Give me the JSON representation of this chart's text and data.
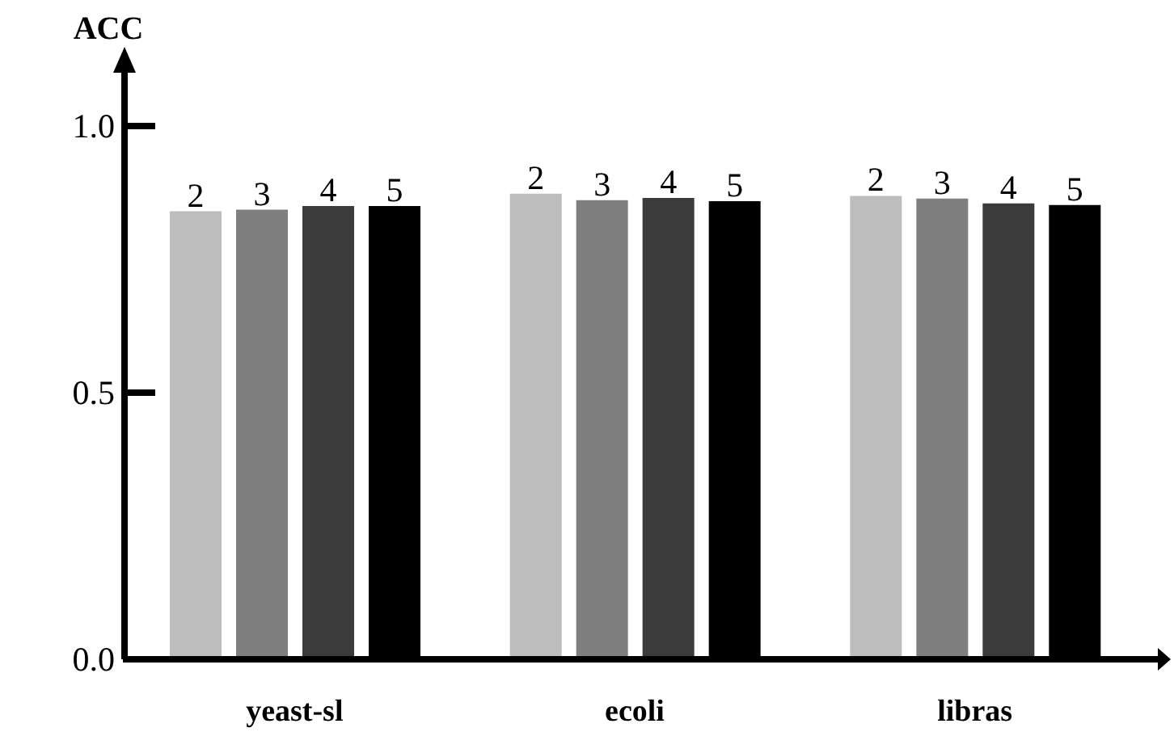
{
  "chart_data": {
    "type": "bar",
    "ylabel": "ACC",
    "categories": [
      "yeast-sl",
      "ecoli",
      "libras"
    ],
    "series": [
      {
        "name": "2",
        "color": "#bdbdbd",
        "values": [
          0.84,
          0.873,
          0.869
        ]
      },
      {
        "name": "3",
        "color": "#7f7f7f",
        "values": [
          0.843,
          0.861,
          0.864
        ]
      },
      {
        "name": "4",
        "color": "#3b3b3b",
        "values": [
          0.85,
          0.865,
          0.855
        ]
      },
      {
        "name": "5",
        "color": "#000000",
        "values": [
          0.85,
          0.859,
          0.852
        ]
      }
    ],
    "ylim": [
      0,
      1.1
    ],
    "yticks": [
      {
        "value": 0,
        "label": "0.0"
      },
      {
        "value": 0.5,
        "label": "0.5"
      },
      {
        "value": 1,
        "label": "1.0"
      }
    ],
    "grid": false,
    "legend": false
  }
}
